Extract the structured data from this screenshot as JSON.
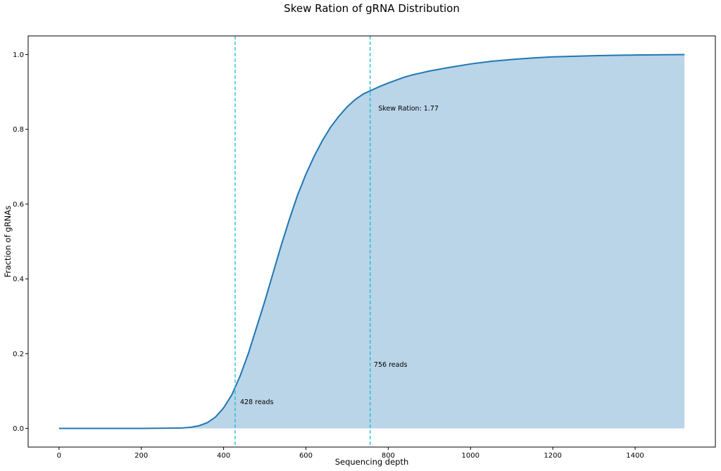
{
  "chart_data": {
    "type": "area",
    "title": "Skew Ration of gRNA Distribution",
    "xlabel": "Sequencing depth",
    "ylabel": "Fraction of gRNAs",
    "xlim": [
      -75,
      1595
    ],
    "ylim": [
      -0.05,
      1.05
    ],
    "xticks": [
      0,
      200,
      400,
      600,
      800,
      1000,
      1200,
      1400
    ],
    "yticks": [
      0.0,
      0.2,
      0.4,
      0.6,
      0.8,
      1.0
    ],
    "grid": false,
    "line_color": "#1f77b4",
    "fill_color": "#bad4e8",
    "vline_color": "#17becf",
    "series": [
      {
        "x": [
          0,
          100,
          200,
          300,
          320,
          340,
          360,
          380,
          400,
          420,
          440,
          460,
          480,
          500,
          520,
          540,
          560,
          580,
          600,
          620,
          640,
          660,
          680,
          700,
          720,
          740,
          760,
          780,
          800,
          820,
          840,
          860,
          880,
          900,
          950,
          1000,
          1050,
          1100,
          1150,
          1200,
          1300,
          1400,
          1520
        ],
        "y": [
          0.0,
          0.0,
          0.0,
          0.001,
          0.003,
          0.007,
          0.015,
          0.03,
          0.055,
          0.09,
          0.14,
          0.2,
          0.27,
          0.34,
          0.415,
          0.49,
          0.56,
          0.625,
          0.68,
          0.728,
          0.77,
          0.806,
          0.835,
          0.86,
          0.88,
          0.895,
          0.905,
          0.915,
          0.924,
          0.932,
          0.94,
          0.946,
          0.951,
          0.956,
          0.966,
          0.975,
          0.982,
          0.987,
          0.991,
          0.994,
          0.997,
          0.999,
          1.0
        ]
      }
    ],
    "vlines": [
      {
        "x": 428,
        "label": "428 reads",
        "label_x": 440,
        "label_y": 0.065
      },
      {
        "x": 756,
        "label": "756 reads",
        "label_x": 765,
        "label_y": 0.165
      }
    ],
    "annotations": [
      {
        "text": "Skew Ration: 1.77",
        "x": 776,
        "y": 0.85
      }
    ]
  }
}
